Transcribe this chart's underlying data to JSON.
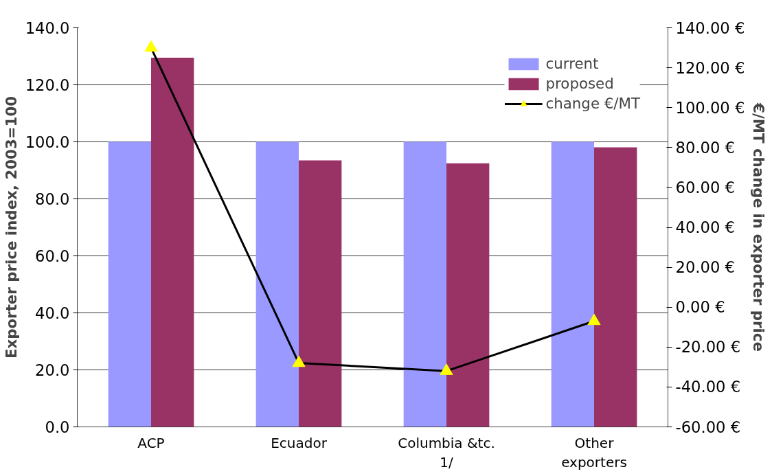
{
  "chart_data": {
    "type": "bar",
    "ylabel": "Exporter price index, 2003=100",
    "y2label": "€/MT change in exporter price",
    "categories": [
      "ACP",
      "Ecuador",
      "Columbia &tc. 1/",
      "Other exporters"
    ],
    "series": [
      {
        "name": "current",
        "color": "#9999ff",
        "values": [
          100.0,
          100.0,
          100.0,
          100.0
        ]
      },
      {
        "name": "proposed",
        "color": "#993366",
        "values": [
          129.5,
          93.5,
          92.5,
          98.1
        ]
      },
      {
        "name": "change €/MT",
        "type": "line",
        "axis": "y2",
        "color": "#000000",
        "marker": "triangle",
        "values": [
          130,
          -28,
          -32,
          -7
        ]
      }
    ],
    "ylim": [
      0,
      140
    ],
    "yticks": [
      {
        "value": 0,
        "label": "0.0"
      },
      {
        "value": 20,
        "label": "20.0"
      },
      {
        "value": 40,
        "label": "40.0"
      },
      {
        "value": 60,
        "label": "60.0"
      },
      {
        "value": 80,
        "label": "80.0"
      },
      {
        "value": 100,
        "label": "100.0"
      },
      {
        "value": 120,
        "label": "120.0"
      },
      {
        "value": 140,
        "label": "140.0"
      }
    ],
    "y2lim": [
      -60,
      140
    ],
    "y2ticks": [
      {
        "value": -60,
        "label": "-60.00 €"
      },
      {
        "value": -40,
        "label": "-40.00 €"
      },
      {
        "value": -20,
        "label": "-20.00 €"
      },
      {
        "value": 0,
        "label": "0.00 €"
      },
      {
        "value": 20,
        "label": "20.00 €"
      },
      {
        "value": 40,
        "label": "40.00 €"
      },
      {
        "value": 60,
        "label": "60.00 €"
      },
      {
        "value": 80,
        "label": "80.00 €"
      },
      {
        "value": 100,
        "label": "100.00 €"
      },
      {
        "value": 120,
        "label": "120.00 €"
      },
      {
        "value": 140,
        "label": "140.00 €"
      }
    ],
    "grid": "y",
    "legend": "top right"
  }
}
